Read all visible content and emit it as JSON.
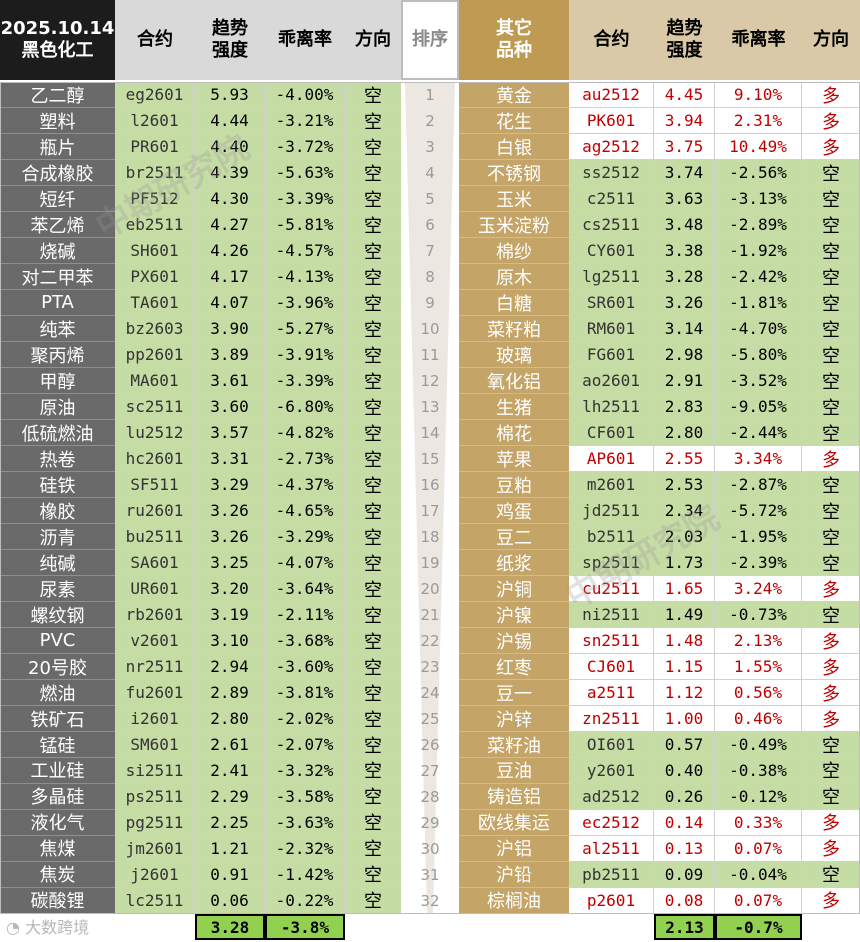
{
  "header": {
    "date": "2025.10.14",
    "group": "黑色化工",
    "contract": "合约",
    "strength_1": "趋势",
    "strength_2": "强度",
    "deviation": "乖离率",
    "direction": "方向",
    "rank": "排序",
    "other_1": "其它",
    "other_2": "品种"
  },
  "left_rows": [
    {
      "name": "乙二醇",
      "code": "eg2601",
      "strength": "5.93",
      "dev": "-4.00%",
      "dir": "空"
    },
    {
      "name": "塑料",
      "code": "l2601",
      "strength": "4.44",
      "dev": "-3.21%",
      "dir": "空"
    },
    {
      "name": "瓶片",
      "code": "PR601",
      "strength": "4.40",
      "dev": "-3.72%",
      "dir": "空"
    },
    {
      "name": "合成橡胶",
      "code": "br2511",
      "strength": "4.39",
      "dev": "-5.63%",
      "dir": "空"
    },
    {
      "name": "短纤",
      "code": "PF512",
      "strength": "4.30",
      "dev": "-3.39%",
      "dir": "空"
    },
    {
      "name": "苯乙烯",
      "code": "eb2511",
      "strength": "4.27",
      "dev": "-5.81%",
      "dir": "空"
    },
    {
      "name": "烧碱",
      "code": "SH601",
      "strength": "4.26",
      "dev": "-4.57%",
      "dir": "空"
    },
    {
      "name": "对二甲苯",
      "code": "PX601",
      "strength": "4.17",
      "dev": "-4.13%",
      "dir": "空"
    },
    {
      "name": "PTA",
      "code": "TA601",
      "strength": "4.07",
      "dev": "-3.96%",
      "dir": "空"
    },
    {
      "name": "纯苯",
      "code": "bz2603",
      "strength": "3.90",
      "dev": "-5.27%",
      "dir": "空"
    },
    {
      "name": "聚丙烯",
      "code": "pp2601",
      "strength": "3.89",
      "dev": "-3.91%",
      "dir": "空"
    },
    {
      "name": "甲醇",
      "code": "MA601",
      "strength": "3.61",
      "dev": "-3.39%",
      "dir": "空"
    },
    {
      "name": "原油",
      "code": "sc2511",
      "strength": "3.60",
      "dev": "-6.80%",
      "dir": "空"
    },
    {
      "name": "低硫燃油",
      "code": "lu2512",
      "strength": "3.57",
      "dev": "-4.82%",
      "dir": "空"
    },
    {
      "name": "热卷",
      "code": "hc2601",
      "strength": "3.31",
      "dev": "-2.73%",
      "dir": "空"
    },
    {
      "name": "硅铁",
      "code": "SF511",
      "strength": "3.29",
      "dev": "-4.37%",
      "dir": "空"
    },
    {
      "name": "橡胶",
      "code": "ru2601",
      "strength": "3.26",
      "dev": "-4.65%",
      "dir": "空"
    },
    {
      "name": "沥青",
      "code": "bu2511",
      "strength": "3.26",
      "dev": "-3.29%",
      "dir": "空"
    },
    {
      "name": "纯碱",
      "code": "SA601",
      "strength": "3.25",
      "dev": "-4.07%",
      "dir": "空"
    },
    {
      "name": "尿素",
      "code": "UR601",
      "strength": "3.20",
      "dev": "-3.64%",
      "dir": "空"
    },
    {
      "name": "螺纹钢",
      "code": "rb2601",
      "strength": "3.19",
      "dev": "-2.11%",
      "dir": "空"
    },
    {
      "name": "PVC",
      "code": "v2601",
      "strength": "3.10",
      "dev": "-3.68%",
      "dir": "空"
    },
    {
      "name": "20号胶",
      "code": "nr2511",
      "strength": "2.94",
      "dev": "-3.60%",
      "dir": "空"
    },
    {
      "name": "燃油",
      "code": "fu2601",
      "strength": "2.89",
      "dev": "-3.81%",
      "dir": "空"
    },
    {
      "name": "铁矿石",
      "code": "i2601",
      "strength": "2.80",
      "dev": "-2.02%",
      "dir": "空"
    },
    {
      "name": "锰硅",
      "code": "SM601",
      "strength": "2.61",
      "dev": "-2.07%",
      "dir": "空"
    },
    {
      "name": "工业硅",
      "code": "si2511",
      "strength": "2.41",
      "dev": "-3.32%",
      "dir": "空"
    },
    {
      "name": "多晶硅",
      "code": "ps2511",
      "strength": "2.29",
      "dev": "-3.58%",
      "dir": "空"
    },
    {
      "name": "液化气",
      "code": "pg2511",
      "strength": "2.25",
      "dev": "-3.63%",
      "dir": "空"
    },
    {
      "name": "焦煤",
      "code": "jm2601",
      "strength": "1.21",
      "dev": "-2.32%",
      "dir": "空"
    },
    {
      "name": "焦炭",
      "code": "j2601",
      "strength": "0.91",
      "dev": "-1.42%",
      "dir": "空"
    },
    {
      "name": "碳酸锂",
      "code": "lc2511",
      "strength": "0.06",
      "dev": "-0.22%",
      "dir": "空"
    }
  ],
  "ranks": [
    "1",
    "2",
    "3",
    "4",
    "5",
    "6",
    "7",
    "8",
    "9",
    "10",
    "11",
    "12",
    "13",
    "14",
    "15",
    "16",
    "17",
    "18",
    "19",
    "20",
    "21",
    "22",
    "23",
    "24",
    "25",
    "26",
    "27",
    "28",
    "29",
    "30",
    "31",
    "32"
  ],
  "right_rows": [
    {
      "name": "黄金",
      "code": "au2512",
      "strength": "4.45",
      "dev": "9.10%",
      "dir": "多"
    },
    {
      "name": "花生",
      "code": "PK601",
      "strength": "3.94",
      "dev": "2.31%",
      "dir": "多"
    },
    {
      "name": "白银",
      "code": "ag2512",
      "strength": "3.75",
      "dev": "10.49%",
      "dir": "多"
    },
    {
      "name": "不锈钢",
      "code": "ss2512",
      "strength": "3.74",
      "dev": "-2.56%",
      "dir": "空"
    },
    {
      "name": "玉米",
      "code": "c2511",
      "strength": "3.63",
      "dev": "-3.13%",
      "dir": "空"
    },
    {
      "name": "玉米淀粉",
      "code": "cs2511",
      "strength": "3.48",
      "dev": "-2.89%",
      "dir": "空"
    },
    {
      "name": "棉纱",
      "code": "CY601",
      "strength": "3.38",
      "dev": "-1.92%",
      "dir": "空"
    },
    {
      "name": "原木",
      "code": "lg2511",
      "strength": "3.28",
      "dev": "-2.42%",
      "dir": "空"
    },
    {
      "name": "白糖",
      "code": "SR601",
      "strength": "3.26",
      "dev": "-1.81%",
      "dir": "空"
    },
    {
      "name": "菜籽粕",
      "code": "RM601",
      "strength": "3.14",
      "dev": "-4.70%",
      "dir": "空"
    },
    {
      "name": "玻璃",
      "code": "FG601",
      "strength": "2.98",
      "dev": "-5.80%",
      "dir": "空"
    },
    {
      "name": "氧化铝",
      "code": "ao2601",
      "strength": "2.91",
      "dev": "-3.52%",
      "dir": "空"
    },
    {
      "name": "生猪",
      "code": "lh2511",
      "strength": "2.83",
      "dev": "-9.05%",
      "dir": "空"
    },
    {
      "name": "棉花",
      "code": "CF601",
      "strength": "2.80",
      "dev": "-2.44%",
      "dir": "空"
    },
    {
      "name": "苹果",
      "code": "AP601",
      "strength": "2.55",
      "dev": "3.34%",
      "dir": "多"
    },
    {
      "name": "豆粕",
      "code": "m2601",
      "strength": "2.53",
      "dev": "-2.87%",
      "dir": "空"
    },
    {
      "name": "鸡蛋",
      "code": "jd2511",
      "strength": "2.34",
      "dev": "-5.72%",
      "dir": "空"
    },
    {
      "name": "豆二",
      "code": "b2511",
      "strength": "2.03",
      "dev": "-1.95%",
      "dir": "空"
    },
    {
      "name": "纸浆",
      "code": "sp2511",
      "strength": "1.73",
      "dev": "-2.39%",
      "dir": "空"
    },
    {
      "name": "沪铜",
      "code": "cu2511",
      "strength": "1.65",
      "dev": "3.24%",
      "dir": "多"
    },
    {
      "name": "沪镍",
      "code": "ni2511",
      "strength": "1.49",
      "dev": "-0.73%",
      "dir": "空"
    },
    {
      "name": "沪锡",
      "code": "sn2511",
      "strength": "1.48",
      "dev": "2.13%",
      "dir": "多"
    },
    {
      "name": "红枣",
      "code": "CJ601",
      "strength": "1.15",
      "dev": "1.55%",
      "dir": "多"
    },
    {
      "name": "豆一",
      "code": "a2511",
      "strength": "1.12",
      "dev": "0.56%",
      "dir": "多"
    },
    {
      "name": "沪锌",
      "code": "zn2511",
      "strength": "1.00",
      "dev": "0.46%",
      "dir": "多"
    },
    {
      "name": "菜籽油",
      "code": "OI601",
      "strength": "0.57",
      "dev": "-0.49%",
      "dir": "空"
    },
    {
      "name": "豆油",
      "code": "y2601",
      "strength": "0.40",
      "dev": "-0.38%",
      "dir": "空"
    },
    {
      "name": "铸造铝",
      "code": "ad2512",
      "strength": "0.26",
      "dev": "-0.12%",
      "dir": "空"
    },
    {
      "name": "欧线集运",
      "code": "ec2512",
      "strength": "0.14",
      "dev": "0.33%",
      "dir": "多"
    },
    {
      "name": "沪铝",
      "code": "al2511",
      "strength": "0.13",
      "dev": "0.07%",
      "dir": "多"
    },
    {
      "name": "沪铅",
      "code": "pb2511",
      "strength": "0.09",
      "dev": "-0.04%",
      "dir": "空"
    },
    {
      "name": "棕榈油",
      "code": "p2601",
      "strength": "0.08",
      "dev": "0.07%",
      "dir": "多"
    }
  ],
  "footer": {
    "left_avg_strength": "3.28",
    "left_avg_dev": "-3.8%",
    "right_avg_strength": "2.13",
    "right_avg_dev": "-0.7%"
  },
  "watermark": "中期研究院",
  "logo": "大数跨境",
  "colors": {
    "header_dark": "#1c1c1c",
    "header_grey": "#d9d9d9",
    "header_gold": "#bf9a52",
    "header_tan": "#d9c9a7",
    "name_dark": "#6a6a6a",
    "name_gold": "#c4a467",
    "green_cell": "#c6dca5",
    "white_cell": "#ffffff",
    "long_text": "#c00000",
    "short_text": "#000000",
    "footer_green": "#92d050"
  }
}
